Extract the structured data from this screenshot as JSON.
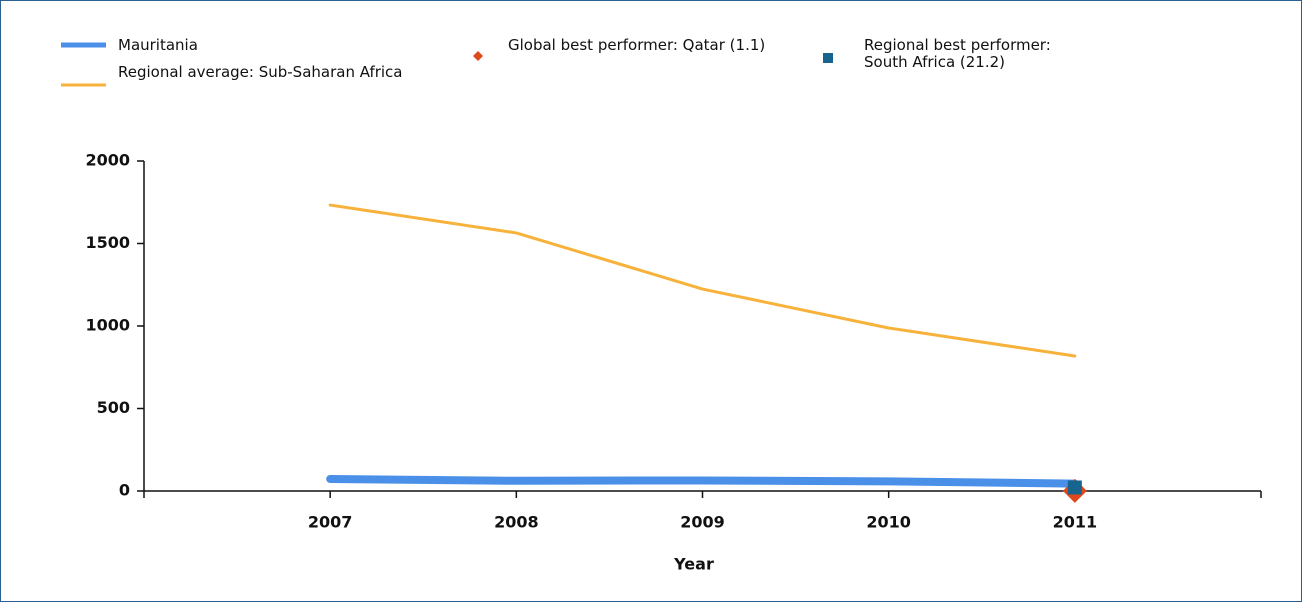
{
  "chart_data": {
    "type": "line",
    "x_label": "Year",
    "x": [
      2007,
      2008,
      2009,
      2010,
      2011
    ],
    "xlim": [
      2006,
      2012
    ],
    "xticks": [
      2007,
      2008,
      2009,
      2010,
      2011
    ],
    "ylim": [
      0,
      2000
    ],
    "yticks": [
      0,
      500,
      1000,
      1500,
      2000
    ],
    "series": [
      {
        "name": "Mauritania",
        "color": "#4a8fe8",
        "line_width": 8,
        "values": [
          73,
          62,
          64,
          58,
          45
        ]
      },
      {
        "name": "Regional average: Sub-Saharan Africa",
        "color": "#f7b23b",
        "line_width": 3,
        "values": [
          1733,
          1564,
          1224,
          988,
          818
        ]
      },
      {
        "name": "Global best performer: Qatar (1.1)",
        "color": "#e0481c",
        "marker": "diamond",
        "values": [
          null,
          null,
          null,
          null,
          1.1
        ]
      },
      {
        "name": "Regional best performer: South Africa (21.2)",
        "color": "#17648f",
        "marker": "square",
        "values": [
          null,
          null,
          null,
          null,
          21.2
        ]
      }
    ]
  }
}
